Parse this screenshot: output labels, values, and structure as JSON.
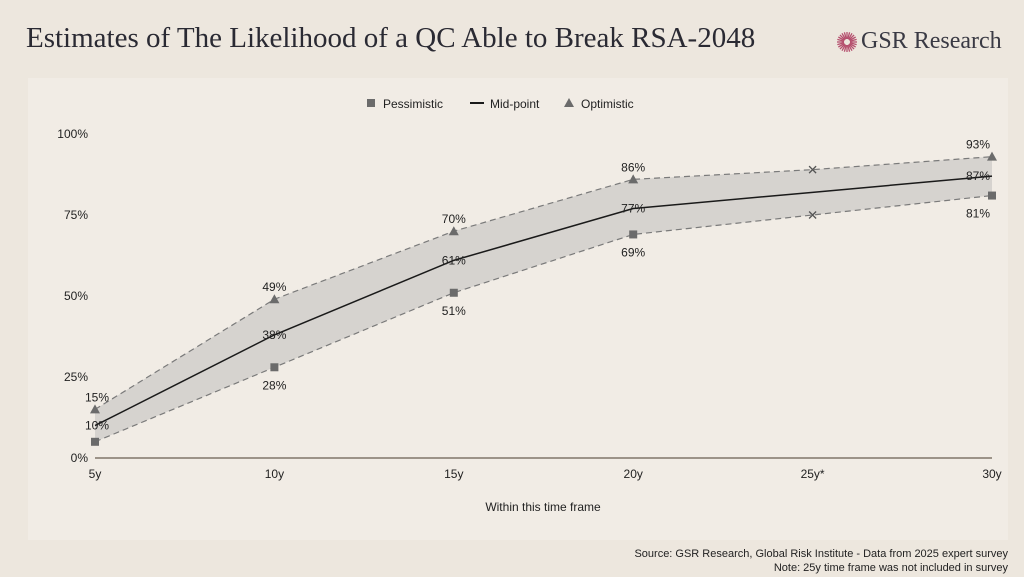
{
  "title": "Estimates of The Likelihood of a QC Able to Break RSA-2048",
  "logo": {
    "text": "GSR Research",
    "color": "#b5506e"
  },
  "footer": {
    "source": "Source: GSR Research, Global Risk Institute  - Data from 2025 expert survey",
    "note": "Note: 25y time frame was not included in survey"
  },
  "colors": {
    "band": "#d6d3cf",
    "midline": "#1a1a1a",
    "markers": "#6b6b6b",
    "dashed": "#7a7a7a"
  },
  "chart_data": {
    "type": "line",
    "title": "",
    "xlabel": "Within this time frame",
    "ylabel": "",
    "categories": [
      "5y",
      "10y",
      "15y",
      "20y",
      "25y*",
      "30y"
    ],
    "yticks": [
      "0%",
      "25%",
      "50%",
      "75%",
      "100%"
    ],
    "ylim": [
      0,
      100
    ],
    "legend_position": "top-center",
    "grid": false,
    "series": [
      {
        "name": "Pessimistic",
        "marker": "square",
        "values": [
          5,
          28,
          51,
          69,
          75,
          81
        ],
        "labels": [
          "",
          "28%",
          "51%",
          "69%",
          "",
          "81%"
        ]
      },
      {
        "name": "Mid-point",
        "marker": "line",
        "values": [
          10,
          38,
          61,
          77,
          82,
          87
        ],
        "labels": [
          "10%",
          "38%",
          "61%",
          "77%",
          "",
          "87%"
        ]
      },
      {
        "name": "Optimistic",
        "marker": "triangle",
        "values": [
          15,
          49,
          70,
          86,
          89,
          93
        ],
        "labels": [
          "15%",
          "49%",
          "70%",
          "86%",
          "",
          "93%"
        ]
      }
    ],
    "interpolated_category": "25y*"
  }
}
